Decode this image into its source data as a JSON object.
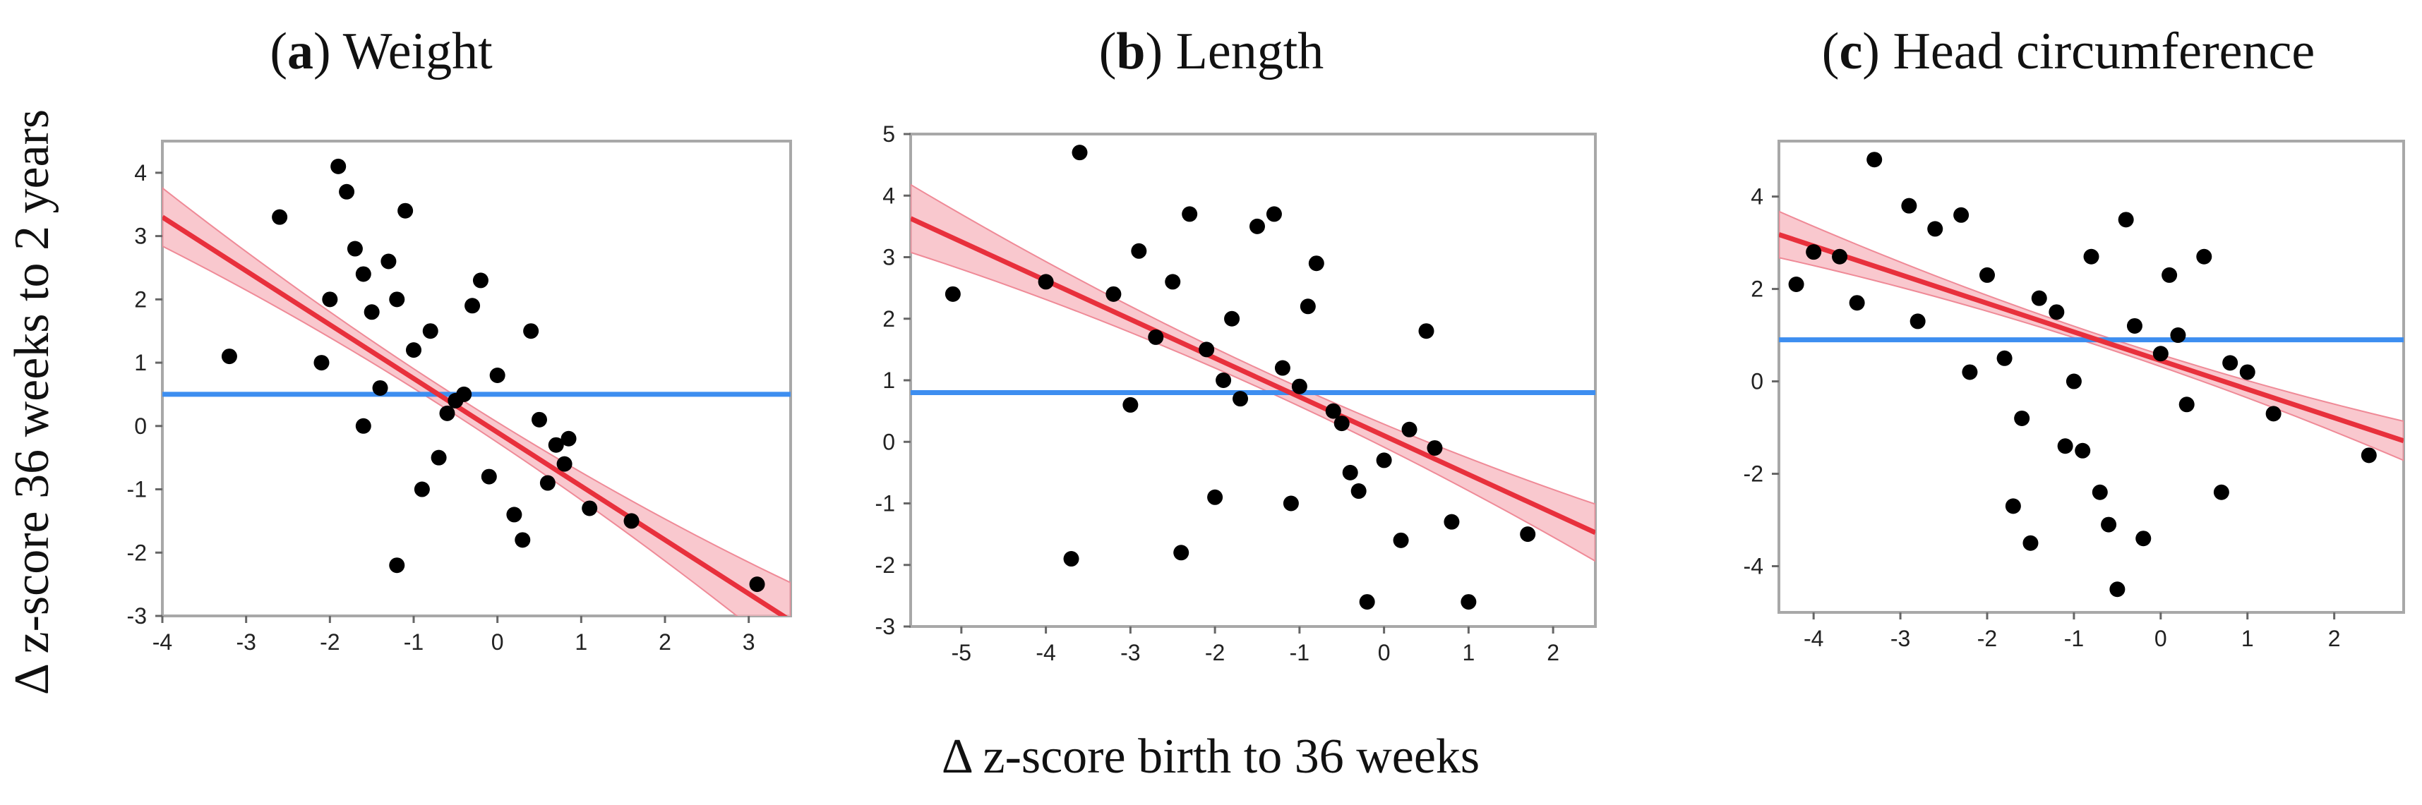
{
  "y_axis_title": "Δ z-score 36 weeks to 2 years",
  "x_axis_title": "Δ z-score birth to 36 weeks",
  "colors": {
    "points": "#000000",
    "regression_line": "#e8303c",
    "confidence_band": "#f7b5bd",
    "mean_line": "#3d8ef0",
    "frame": "#a8a8a8"
  },
  "chart_data": [
    {
      "type": "scatter",
      "panel_label": "a",
      "title": "Weight",
      "xlim": [
        -4,
        3.5
      ],
      "ylim": [
        -3,
        4.5
      ],
      "x_ticks": [
        -4,
        -3,
        -2,
        -1,
        0,
        1,
        2,
        3
      ],
      "y_ticks": [
        -3,
        -2,
        -1,
        0,
        1,
        2,
        3,
        4
      ],
      "mean_line_y": 0.5,
      "regression": {
        "slope": -0.85,
        "intercept": -0.1,
        "ci_half_width_center": 0.15,
        "ci_half_width_edge": 0.6,
        "ci_center_x": -0.6
      },
      "points_x": [
        -3.2,
        -2.6,
        -2.1,
        -1.9,
        -1.8,
        -1.7,
        -1.6,
        -1.3,
        -1.1,
        3.1,
        1.6,
        1.1,
        0.8,
        0.85,
        0.4,
        -2.0,
        -1.5,
        -0.8,
        -0.2,
        0.3,
        -1.2,
        -0.9,
        -0.6,
        -0.4,
        0.0,
        0.5,
        0.7,
        -1.4,
        -0.7,
        -1.0,
        -0.3,
        0.2,
        -0.5,
        -1.6,
        -0.1,
        0.6,
        -1.2
      ],
      "points_y": [
        1.1,
        3.3,
        1.0,
        4.1,
        3.7,
        2.8,
        2.4,
        2.6,
        3.4,
        -2.5,
        -1.5,
        -1.3,
        -0.6,
        -0.2,
        1.5,
        2.0,
        1.8,
        1.5,
        2.3,
        -1.8,
        -2.2,
        -1.0,
        0.2,
        0.5,
        0.8,
        0.1,
        -0.3,
        0.6,
        -0.5,
        1.2,
        1.9,
        -1.4,
        0.4,
        0.0,
        -0.8,
        -0.9,
        2.0
      ]
    },
    {
      "type": "scatter",
      "panel_label": "b",
      "title": "Length",
      "xlim": [
        -5.6,
        2.5
      ],
      "ylim": [
        -3,
        5
      ],
      "x_ticks": [
        -5,
        -4,
        -3,
        -2,
        -1,
        0,
        1,
        2
      ],
      "y_ticks": [
        -3,
        -2,
        -1,
        0,
        1,
        2,
        3,
        4,
        5
      ],
      "mean_line_y": 0.8,
      "regression": {
        "slope": -0.63,
        "intercept": 0.1,
        "ci_half_width_center": 0.15,
        "ci_half_width_edge": 0.55,
        "ci_center_x": -1.3
      },
      "points_x": [
        -5.1,
        -4.0,
        -3.7,
        -3.6,
        -3.2,
        -2.9,
        -2.5,
        -2.3,
        -2.1,
        -1.8,
        -1.5,
        -1.3,
        -1.1,
        -0.9,
        -0.6,
        -0.3,
        -0.2,
        0.2,
        0.5,
        0.8,
        1.0,
        1.7,
        -2.7,
        -2.0,
        -1.7,
        -1.2,
        -0.8,
        -0.5,
        0.0,
        0.3,
        -3.0,
        -2.4,
        -1.9,
        -1.0,
        -0.4,
        0.6
      ],
      "points_y": [
        2.4,
        2.6,
        -1.9,
        4.7,
        2.4,
        3.1,
        2.6,
        3.7,
        1.5,
        2.0,
        3.5,
        3.7,
        -1.0,
        2.2,
        0.5,
        -0.8,
        -2.6,
        -1.6,
        1.8,
        -1.3,
        -2.6,
        -1.5,
        1.7,
        -0.9,
        0.7,
        1.2,
        2.9,
        0.3,
        -0.3,
        0.2,
        0.6,
        -1.8,
        1.0,
        0.9,
        -0.5,
        -0.1
      ]
    },
    {
      "type": "scatter",
      "panel_label": "c",
      "title": "Head circumference",
      "xlim": [
        -4.4,
        2.8
      ],
      "ylim": [
        -5,
        5.2
      ],
      "x_ticks": [
        -4,
        -3,
        -2,
        -1,
        0,
        1,
        2
      ],
      "y_ticks": [
        -4,
        -2,
        0,
        2,
        4
      ],
      "mean_line_y": 0.9,
      "regression": {
        "slope": -0.62,
        "intercept": 0.45,
        "ci_half_width_center": 0.12,
        "ci_half_width_edge": 0.5,
        "ci_center_x": -0.6
      },
      "points_x": [
        -4.2,
        -4.0,
        -3.7,
        -3.5,
        -3.3,
        -2.9,
        -2.6,
        -2.3,
        -2.0,
        -1.7,
        -1.5,
        -1.2,
        -0.9,
        -0.7,
        -0.5,
        -0.4,
        -0.2,
        0.1,
        0.5,
        0.7,
        1.0,
        1.3,
        2.4,
        -1.8,
        -1.4,
        -1.0,
        -0.6,
        -0.3,
        0.0,
        0.3,
        -2.8,
        -2.2,
        -1.6,
        -0.8,
        0.2,
        0.8,
        -1.1
      ],
      "points_y": [
        2.1,
        2.8,
        2.7,
        1.7,
        4.8,
        3.8,
        3.3,
        3.6,
        2.3,
        -2.7,
        -3.5,
        1.5,
        -1.5,
        -2.4,
        -4.5,
        3.5,
        -3.4,
        2.3,
        2.7,
        -2.4,
        0.2,
        -0.7,
        -1.6,
        0.5,
        1.8,
        0.0,
        -3.1,
        1.2,
        0.6,
        -0.5,
        1.3,
        0.2,
        -0.8,
        2.7,
        1.0,
        0.4,
        -1.4
      ]
    }
  ]
}
